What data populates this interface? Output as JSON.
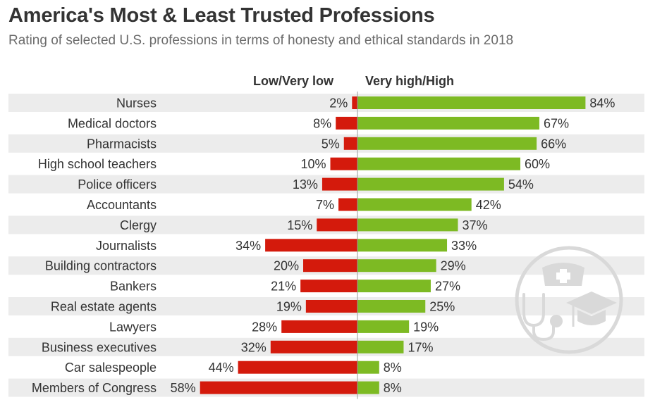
{
  "title": "America's Most & Least Trusted Professions",
  "subtitle": "Rating of selected U.S. professions in terms of honesty and ethical standards in 2018",
  "legend": {
    "low": "Low/Very low",
    "high": "Very high/High"
  },
  "colors": {
    "low": "#d41a0c",
    "high": "#7dba23",
    "row_band": "#ececec",
    "divider": "#9a9a9a",
    "watermark": "#d9d9d9"
  },
  "watermark_icons": [
    "nurse-cap-icon",
    "stethoscope-icon",
    "graduation-cap-icon"
  ],
  "chart_data": {
    "type": "bar",
    "orientation": "horizontal",
    "diverging": true,
    "categories": [
      "Nurses",
      "Medical doctors",
      "Pharmacists",
      "High school teachers",
      "Police officers",
      "Accountants",
      "Clergy",
      "Journalists",
      "Building contractors",
      "Bankers",
      "Real estate agents",
      "Lawyers",
      "Business executives",
      "Car salespeople",
      "Members of Congress"
    ],
    "series": [
      {
        "name": "Low/Very low",
        "values": [
          2,
          8,
          5,
          10,
          13,
          7,
          15,
          34,
          20,
          21,
          19,
          28,
          32,
          44,
          58
        ],
        "labels": [
          "2%",
          "8%",
          "5%",
          "10%",
          "13%",
          "7%",
          "15%",
          "34%",
          "20%",
          "21%",
          "19%",
          "28%",
          "32%",
          "44%",
          "58%"
        ]
      },
      {
        "name": "Very high/High",
        "values": [
          84,
          67,
          66,
          60,
          54,
          42,
          37,
          33,
          29,
          27,
          25,
          19,
          17,
          8,
          8
        ],
        "labels": [
          "84%",
          "67%",
          "66%",
          "60%",
          "54%",
          "42%",
          "37%",
          "33%",
          "29%",
          "27%",
          "25%",
          "19%",
          "17%",
          "8%",
          "8%"
        ]
      }
    ],
    "unit": "%",
    "grid": false,
    "legend_position": "top"
  }
}
